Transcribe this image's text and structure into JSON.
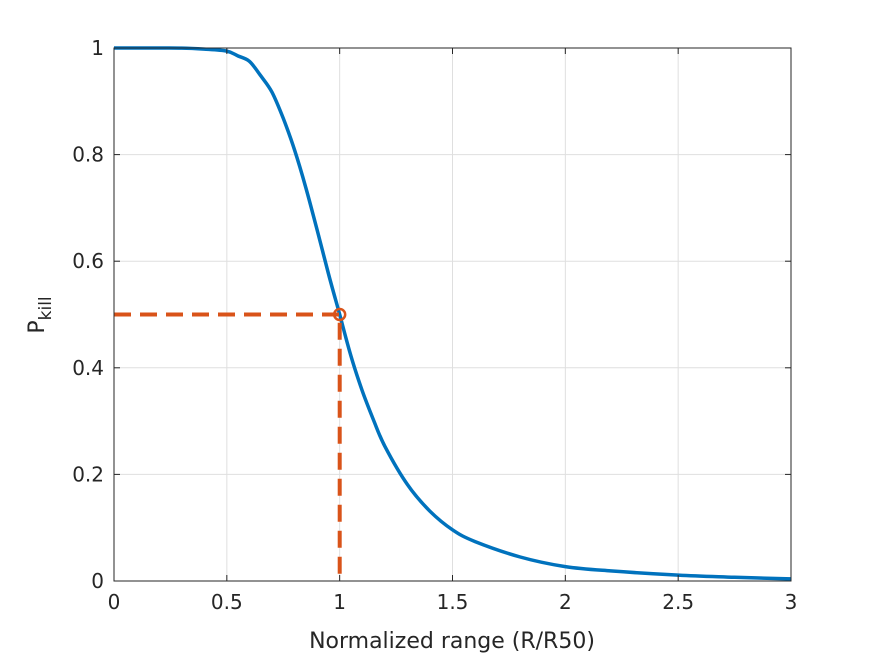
{
  "chart_data": {
    "type": "line",
    "title": "",
    "xlabel": "Normalized range (R/R50)",
    "ylabel": "P",
    "ylabel_subscript": "kill",
    "xlim": [
      0,
      3
    ],
    "ylim": [
      0,
      1
    ],
    "xticks": [
      "0",
      "0.5",
      "1",
      "1.5",
      "2",
      "2.5",
      "3"
    ],
    "yticks": [
      "0",
      "0.2",
      "0.4",
      "0.6",
      "0.8",
      "1"
    ],
    "grid": true,
    "legend": "none",
    "series": [
      {
        "style": "solid",
        "color": "#0072BD",
        "x": [
          0,
          0.1,
          0.2,
          0.3,
          0.4,
          0.5,
          0.55,
          0.6,
          0.65,
          0.7,
          0.75,
          0.8,
          0.85,
          0.9,
          0.95,
          1.0,
          1.05,
          1.1,
          1.15,
          1.2,
          1.3,
          1.4,
          1.5,
          1.6,
          1.8,
          2.0,
          2.2,
          2.5,
          2.75,
          3.0
        ],
        "y": [
          1.0,
          1.0,
          1.0,
          0.9999,
          0.998,
          0.9941,
          0.985,
          0.975,
          0.948,
          0.917,
          0.868,
          0.809,
          0.738,
          0.659,
          0.577,
          0.5,
          0.422,
          0.357,
          0.302,
          0.253,
          0.181,
          0.131,
          0.096,
          0.074,
          0.045,
          0.027,
          0.019,
          0.011,
          0.007,
          0.004
        ]
      },
      {
        "style": "dashed",
        "color": "#D95319",
        "x": [
          0,
          1,
          1
        ],
        "y": [
          0.5,
          0.5,
          0
        ]
      }
    ],
    "markers": [
      {
        "x": 1,
        "y": 0.5,
        "shape": "circle",
        "color": "#D95319"
      }
    ]
  }
}
